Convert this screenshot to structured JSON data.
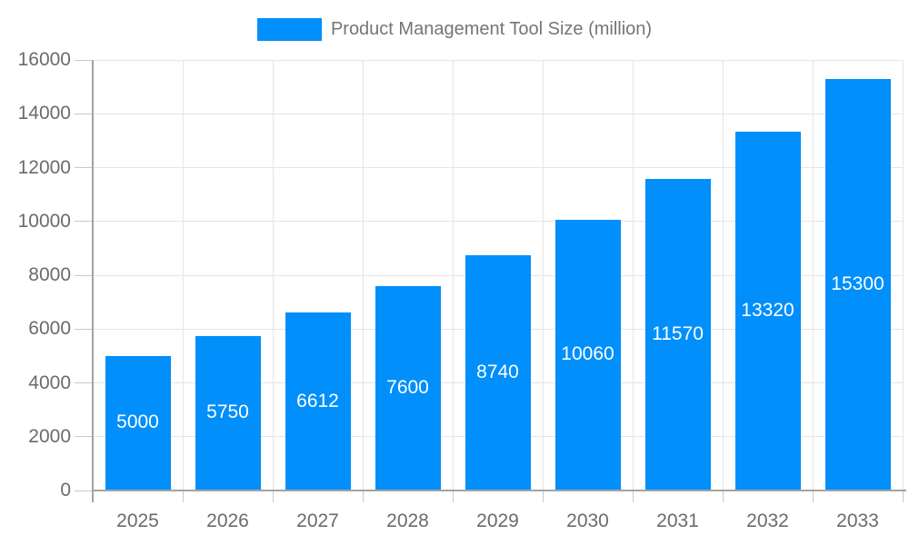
{
  "legend": {
    "label": "Product Management Tool Size (million)"
  },
  "chart_data": {
    "type": "bar",
    "title": "Product Management Tool Size (million)",
    "categories": [
      "2025",
      "2026",
      "2027",
      "2028",
      "2029",
      "2030",
      "2031",
      "2032",
      "2033"
    ],
    "values": [
      5000,
      5750,
      6612,
      7600,
      8740,
      10060,
      11570,
      13320,
      15300
    ],
    "xlabel": "",
    "ylabel": "",
    "ylim": [
      0,
      16000
    ],
    "y_ticks": [
      0,
      2000,
      4000,
      6000,
      8000,
      10000,
      12000,
      14000,
      16000
    ],
    "grid": true,
    "legend_position": "top-center",
    "value_labels": "inside-center",
    "colors": {
      "bar": "#008FFB",
      "value_label": "#FFFFFF",
      "axis_text": "#6B6B6B",
      "title_text": "#757575",
      "gridline": "#E5E5E5",
      "axis_line": "#A3A3A3",
      "tick": "#C9C9C9",
      "background": "#FFFFFF"
    }
  }
}
